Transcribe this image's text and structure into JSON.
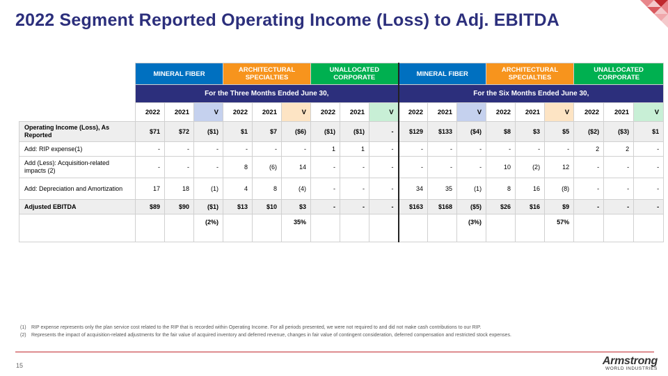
{
  "title": "2022 Segment Reported Operating Income (Loss) to Adj. EBITDA",
  "segments": [
    {
      "label": "MINERAL FIBER",
      "color": "#0070c0"
    },
    {
      "label": "ARCHITECTURAL SPECIALTIES",
      "color": "#f7941d"
    },
    {
      "label": "UNALLOCATED CORPORATE",
      "color": "#00b050"
    },
    {
      "label": "MINERAL FIBER",
      "color": "#0070c0"
    },
    {
      "label": "ARCHITECTURAL SPECIALTIES",
      "color": "#f7941d"
    },
    {
      "label": "UNALLOCATED CORPORATE",
      "color": "#00b050"
    }
  ],
  "periods": [
    "For the Three Months Ended June 30,",
    "For the Six Months Ended June 30,"
  ],
  "col_headers": [
    "2022",
    "2021",
    "V",
    "2022",
    "2021",
    "V",
    "2022",
    "2021",
    "V",
    "2022",
    "2021",
    "V",
    "2022",
    "2021",
    "V",
    "2022",
    "2021",
    "V"
  ],
  "rows": [
    {
      "label": "Operating Income (Loss), As Reported",
      "bold": true,
      "values": [
        "$71",
        "$72",
        "($1)",
        "$1",
        "$7",
        "($6)",
        "($1)",
        "($1)",
        "-",
        "$129",
        "$133",
        "($4)",
        "$8",
        "$3",
        "$5",
        "($2)",
        "($3)",
        "$1"
      ]
    },
    {
      "label": "Add: RIP expense(1)",
      "bold": false,
      "values": [
        "-",
        "-",
        "-",
        "-",
        "-",
        "-",
        "1",
        "1",
        "-",
        "-",
        "-",
        "-",
        "-",
        "-",
        "-",
        "2",
        "2",
        "-"
      ]
    },
    {
      "label": "Add (Less): Acquisition-related impacts (2)",
      "bold": false,
      "values": [
        "-",
        "-",
        "-",
        "8",
        "(6)",
        "14",
        "-",
        "-",
        "-",
        "-",
        "-",
        "-",
        "10",
        "(2)",
        "12",
        "-",
        "-",
        "-"
      ]
    },
    {
      "label": "Add: Depreciation and Amortization",
      "bold": false,
      "values": [
        "17",
        "18",
        "(1)",
        "4",
        "8",
        "(4)",
        "-",
        "-",
        "-",
        "34",
        "35",
        "(1)",
        "8",
        "16",
        "(8)",
        "-",
        "-",
        "-"
      ]
    },
    {
      "label": "Adjusted EBITDA",
      "bold": true,
      "values": [
        "$89",
        "$90",
        "($1)",
        "$13",
        "$10",
        "$3",
        "-",
        "-",
        "-",
        "$163",
        "$168",
        "($5)",
        "$26",
        "$16",
        "$9",
        "-",
        "-",
        "-"
      ]
    },
    {
      "label": "",
      "bold": false,
      "values": [
        "",
        "",
        "(2%)",
        "",
        "",
        "35%",
        "",
        "",
        "",
        "",
        "",
        "(3%)",
        "",
        "",
        "57%",
        "",
        "",
        ""
      ]
    }
  ],
  "footnotes": [
    {
      "num": "(1)",
      "text": "RIP expense represents only the plan service cost related to the RIP that is recorded within Operating Income. For all periods presented, we were not required to and did not make cash contributions to our RIP."
    },
    {
      "num": "(2)",
      "text": "Represents the impact of acquisition-related adjustments for the fair value of acquired inventory and deferred revenue, changes in fair value of contingent consideration, deferred compensation and restricted stock expenses."
    }
  ],
  "page_number": "15",
  "brand": {
    "name": "Armstrong",
    "sub": "WORLD INDUSTRIES"
  },
  "colors": {
    "title": "#2c2f7c",
    "accent_red": "#c0282d",
    "period_bar": "#2c2f7c"
  }
}
